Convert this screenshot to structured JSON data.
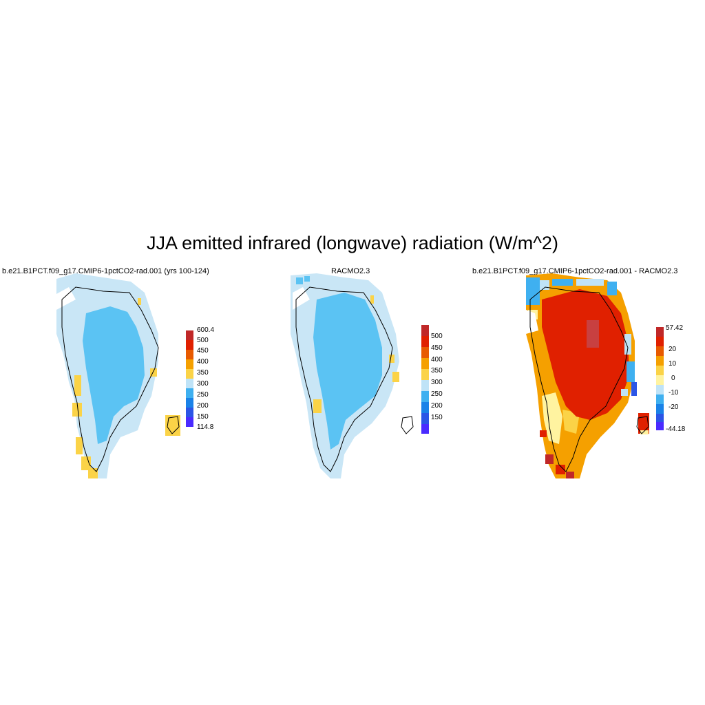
{
  "title": "JJA emitted infrared (longwave) radiation (W/m^2)",
  "panels": [
    {
      "title": "b.e21.B1PCT.f09_g17.CMIP6-1pctCO2-rad.001 (yrs 100-124)",
      "colorbar": {
        "colors": [
          "#4a2bff",
          "#2b55e6",
          "#1a82e8",
          "#3fb0f0",
          "#bfe3f7",
          "#fbd347",
          "#f5a000",
          "#e85a00",
          "#e02000",
          "#c02828"
        ],
        "labels": [
          "600.4",
          "500",
          "450",
          "400",
          "350",
          "300",
          "250",
          "200",
          "150",
          "114.8"
        ]
      }
    },
    {
      "title": "RACMO2.3",
      "colorbar": {
        "colors": [
          "#4a2bff",
          "#2b55e6",
          "#1a82e8",
          "#3fb0f0",
          "#bfe3f7",
          "#fbd347",
          "#f5a000",
          "#e85a00",
          "#e02000",
          "#c02828"
        ],
        "labels": [
          "500",
          "450",
          "400",
          "350",
          "300",
          "250",
          "200",
          "150"
        ]
      }
    },
    {
      "title": "b.e21.B1PCT.f09_g17.CMIP6-1pctCO2-rad.001 - RACMO2.3",
      "colorbar": {
        "colors": [
          "#4a2bff",
          "#2b55e6",
          "#1a82e8",
          "#3fb0f0",
          "#bfe3f7",
          "#fff3a0",
          "#fbd347",
          "#f5a000",
          "#e85a00",
          "#e02000",
          "#c02828"
        ],
        "labels": [
          "57.42",
          "20",
          "10",
          "0",
          "-10",
          "-20",
          "-44.18"
        ]
      }
    }
  ]
}
